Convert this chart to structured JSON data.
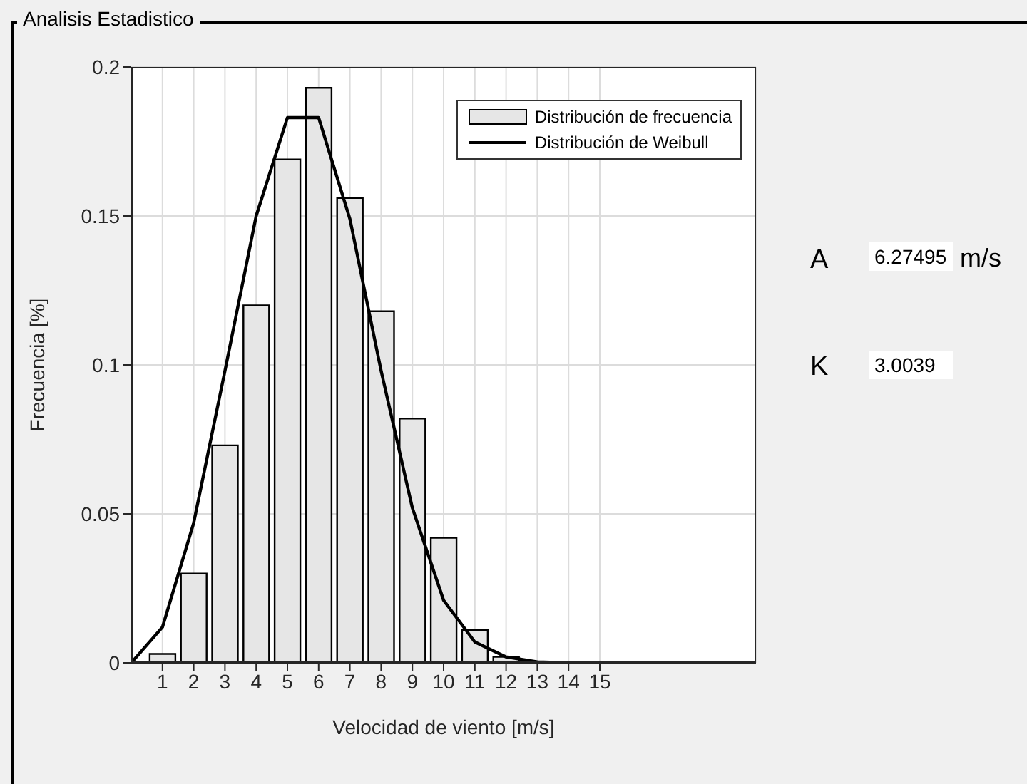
{
  "chart_data": {
    "type": "bar",
    "title": "Analisis Estadistico",
    "xlabel": "Velocidad de viento [m/s]",
    "ylabel": "Frecuencia [%]",
    "series": [
      {
        "name": "Distribución de frecuencia",
        "color": "#e6e6e6",
        "x": [
          1,
          2,
          3,
          4,
          5,
          6,
          7,
          8,
          9,
          10,
          11,
          12
        ],
        "values": [
          0.003,
          0.03,
          0.073,
          0.12,
          0.169,
          0.193,
          0.156,
          0.118,
          0.082,
          0.042,
          0.011,
          0.002
        ]
      },
      {
        "name": "Distribución de Weibull",
        "type": "line",
        "color": "#000000",
        "x": [
          0,
          1,
          2,
          3,
          4,
          5,
          6,
          7,
          8,
          9,
          10,
          11,
          12,
          13,
          14,
          15
        ],
        "values": [
          0,
          0.012,
          0.047,
          0.098,
          0.15,
          0.183,
          0.183,
          0.149,
          0.098,
          0.052,
          0.021,
          0.007,
          0.002,
          0.0003,
          0,
          0
        ]
      }
    ],
    "xlim": [
      0,
      20
    ],
    "xticks": [
      1,
      2,
      3,
      4,
      5,
      6,
      7,
      8,
      9,
      10,
      11,
      12,
      13,
      14,
      15
    ],
    "ylim": [
      0,
      0.2
    ],
    "yticks": [
      0,
      0.05,
      0.1,
      0.15,
      0.2
    ],
    "grid": true,
    "legend": "top right",
    "marker": "none",
    "line_style": "solid",
    "annotations": [
      "A",
      "6.27495",
      "m/s",
      "K",
      "3.0039"
    ]
  }
}
